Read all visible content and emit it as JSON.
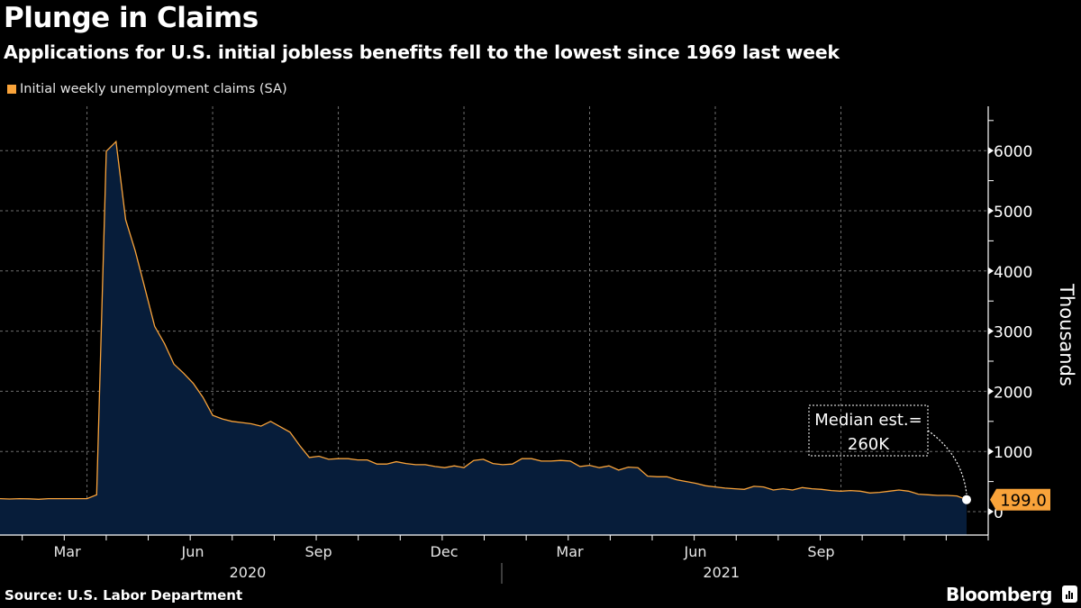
{
  "header": {
    "title": "Plunge in Claims",
    "subtitle": "Applications for U.S. initial jobless benefits fell to the lowest since 1969 last week"
  },
  "legend": {
    "label": "Initial weekly unemployment claims (SA)",
    "color": "#f9a33a"
  },
  "footer": {
    "source": "Source: U.S. Labor Department",
    "brand": "Bloomberg"
  },
  "annotation": {
    "line1": "Median est.=",
    "line2": "260K",
    "last_value_label": "199.0"
  },
  "colors": {
    "line": "#f9a33a",
    "fill": "#071d3a",
    "grid": "#8a8a8a",
    "axis": "#ffffff"
  },
  "chart_data": {
    "type": "area",
    "title": "Plunge in Claims",
    "subtitle": "Applications for U.S. initial jobless benefits fell to the lowest since 1969 last week",
    "ylabel": "Thousands",
    "xlabel": "",
    "ylim": [
      -350,
      6700
    ],
    "yticks": [
      0,
      1000,
      2000,
      3000,
      4000,
      5000,
      6000
    ],
    "xticks": [
      {
        "label": "Mar",
        "week": 9
      },
      {
        "label": "Jun",
        "week": 22
      },
      {
        "label": "Sep",
        "week": 35
      },
      {
        "label": "Dec",
        "week": 48
      },
      {
        "label": "Mar",
        "week": 61
      },
      {
        "label": "Jun",
        "week": 74
      },
      {
        "label": "Sep",
        "week": 87
      }
    ],
    "year_labels": [
      {
        "label": "2020",
        "week": 26
      },
      {
        "label": "2021",
        "week": 75
      }
    ],
    "grid": true,
    "legend_position": "top-left",
    "series": [
      {
        "name": "Initial weekly unemployment claims (SA)",
        "unit": "thousands",
        "start_week": "2020-01-04",
        "frequency": "weekly",
        "values": [
          215,
          210,
          215,
          212,
          205,
          215,
          215,
          215,
          215,
          215,
          280,
          5990,
          6150,
          4850,
          4330,
          3710,
          3080,
          2800,
          2450,
          2300,
          2130,
          1900,
          1600,
          1540,
          1500,
          1480,
          1460,
          1420,
          1500,
          1410,
          1320,
          1100,
          900,
          920,
          870,
          880,
          880,
          860,
          860,
          790,
          790,
          830,
          800,
          780,
          780,
          750,
          730,
          760,
          730,
          850,
          870,
          800,
          780,
          790,
          880,
          880,
          840,
          840,
          850,
          840,
          750,
          770,
          730,
          760,
          690,
          740,
          730,
          590,
          580,
          580,
          530,
          500,
          470,
          430,
          410,
          390,
          380,
          370,
          420,
          410,
          360,
          380,
          360,
          400,
          380,
          370,
          350,
          340,
          350,
          340,
          310,
          320,
          340,
          360,
          340,
          290,
          280,
          270,
          270,
          260,
          199
        ]
      }
    ],
    "annotations": [
      {
        "text": "Median est.= 260K",
        "points_to": "last"
      },
      {
        "text": "199.0",
        "type": "last-value-badge"
      }
    ]
  }
}
